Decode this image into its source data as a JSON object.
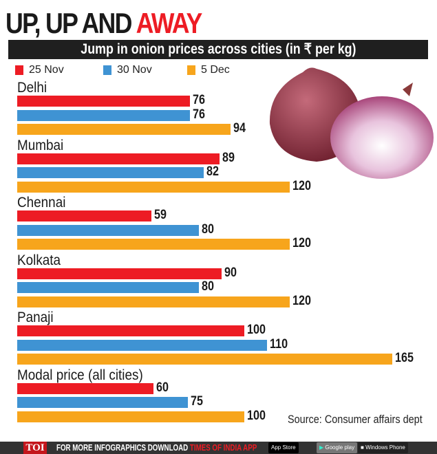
{
  "header": {
    "title_part1": "UP, UP AND ",
    "title_part2": "AWAY"
  },
  "chart_data": {
    "type": "bar",
    "orientation": "horizontal",
    "title": "Jump in onion prices across cities (in ₹ per kg)",
    "categories": [
      "Delhi",
      "Mumbai",
      "Chennai",
      "Kolkata",
      "Panaji",
      "Modal price (all cities)"
    ],
    "series": [
      {
        "name": "25 Nov",
        "color": "#ed1c24",
        "values": [
          76,
          89,
          59,
          90,
          100,
          60
        ]
      },
      {
        "name": "30 Nov",
        "color": "#3f93d3",
        "values": [
          76,
          82,
          80,
          80,
          110,
          75
        ]
      },
      {
        "name": "5 Dec",
        "color": "#f7a51c",
        "values": [
          94,
          120,
          120,
          120,
          165,
          100
        ]
      }
    ],
    "xlim": [
      0,
      180
    ],
    "grid": false,
    "legend_placement": "top-left",
    "source": "Source: Consumer affairs dept"
  },
  "footer": {
    "logo": "TOI",
    "text1": "FOR MORE  INFOGRAPHICS DOWNLOAD ",
    "text2": "TIMES OF INDIA  APP",
    "appstore": "App Store",
    "googleplay": "Google play",
    "windows": "Windows Phone"
  }
}
